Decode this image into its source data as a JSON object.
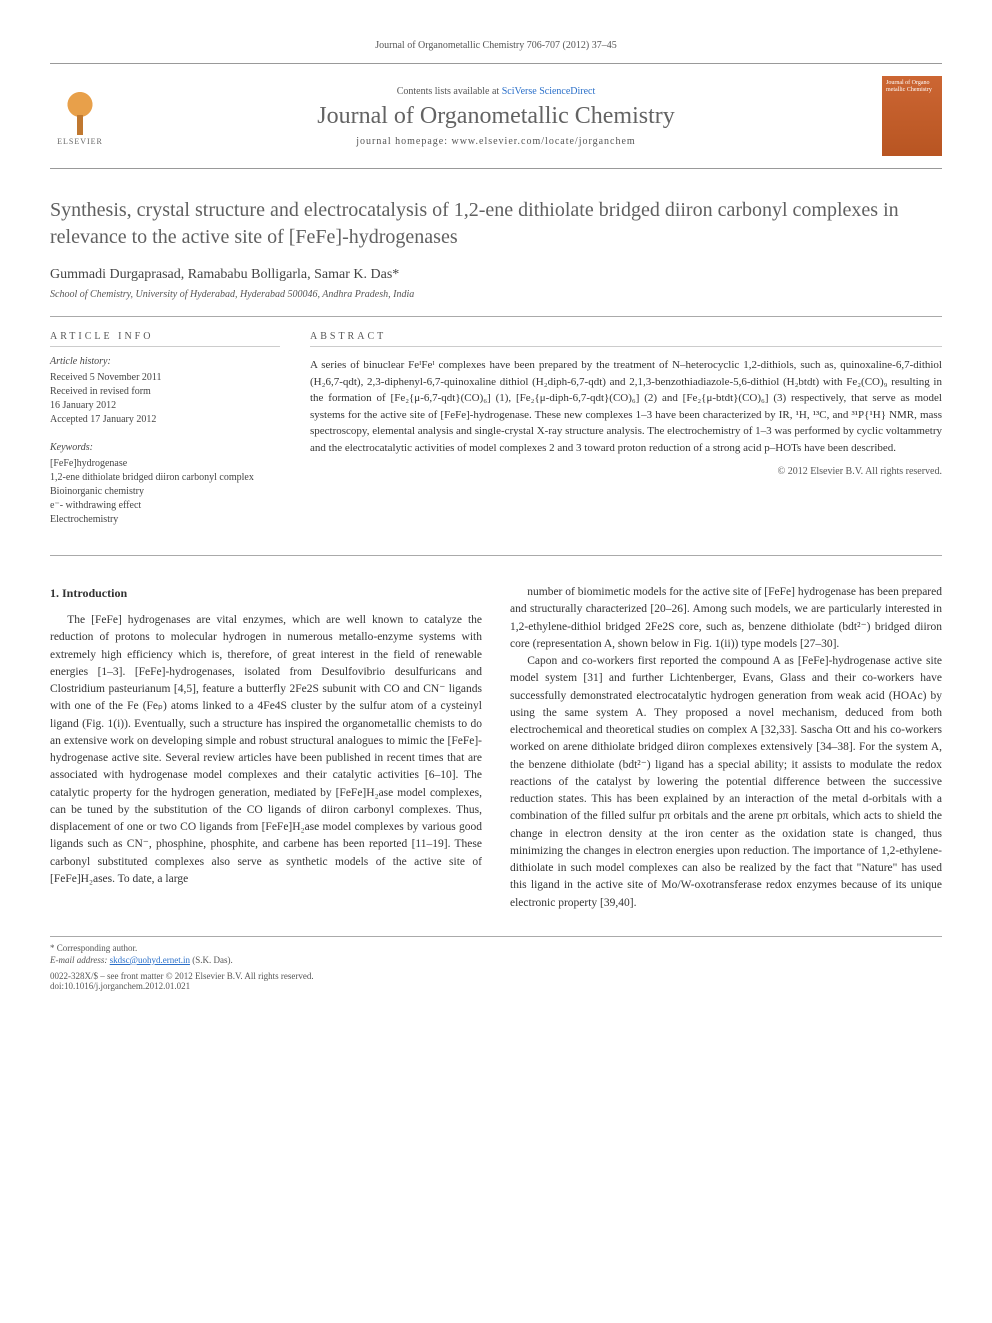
{
  "top_citation": "Journal of Organometallic Chemistry 706-707 (2012) 37–45",
  "header": {
    "contents_prefix": "Contents lists available at ",
    "contents_link": "SciVerse ScienceDirect",
    "journal_name": "Journal of Organometallic Chemistry",
    "homepage_prefix": "journal homepage: ",
    "homepage_url": "www.elsevier.com/locate/jorganchem",
    "elsevier_label": "ELSEVIER",
    "cover_text": "Journal of Organo metallic Chemistry"
  },
  "title": "Synthesis, crystal structure and electrocatalysis of 1,2-ene dithiolate bridged diiron carbonyl complexes in relevance to the active site of [FeFe]-hydrogenases",
  "authors": "Gummadi Durgaprasad, Ramababu Bolligarla, Samar K. Das*",
  "affiliation": "School of Chemistry, University of Hyderabad, Hyderabad 500046, Andhra Pradesh, India",
  "article_info": {
    "heading": "ARTICLE INFO",
    "history_label": "Article history:",
    "history": "Received 5 November 2011\nReceived in revised form\n16 January 2012\nAccepted 17 January 2012",
    "keywords_label": "Keywords:",
    "keywords": "[FeFe]hydrogenase\n1,2-ene dithiolate bridged diiron carbonyl complex\nBioinorganic chemistry\ne⁻- withdrawing effect\nElectrochemistry"
  },
  "abstract": {
    "heading": "ABSTRACT",
    "text": "A series of binuclear FeᴵFeᴵ complexes have been prepared by the treatment of N–heterocyclic 1,2-dithiols, such as, quinoxaline-6,7-dithiol (H₂6,7-qdt), 2,3-diphenyl-6,7-quinoxaline dithiol (H₂diph-6,7-qdt) and 2,1,3-benzothiadiazole-5,6-dithiol (H₂btdt) with Fe₂(CO)₉ resulting in the formation of [Fe₂{μ-6,7-qdt}(CO)₆] (1), [Fe₂{μ-diph-6,7-qdt}(CO)₆] (2) and [Fe₂{μ-btdt}(CO)₆] (3) respectively, that serve as model systems for the active site of [FeFe]-hydrogenase. These new complexes 1–3 have been characterized by IR, ¹H, ¹³C, and ³¹P{¹H} NMR, mass spectroscopy, elemental analysis and single-crystal X-ray structure analysis. The electrochemistry of 1–3 was performed by cyclic voltammetry and the electrocatalytic activities of model complexes 2 and 3 toward proton reduction of a strong acid p–HOTs have been described.",
    "copyright": "© 2012 Elsevier B.V. All rights reserved."
  },
  "body": {
    "section_heading": "1. Introduction",
    "col1_p1": "The [FeFe] hydrogenases are vital enzymes, which are well known to catalyze the reduction of protons to molecular hydrogen in numerous metallo-enzyme systems with extremely high efficiency which is, therefore, of great interest in the field of renewable energies [1–3]. [FeFe]-hydrogenases, isolated from Desulfovibrio desulfuricans and Clostridium pasteurianum [4,5], feature a butterfly 2Fe2S subunit with CO and CN⁻ ligands with one of the Fe (Feₚ) atoms linked to a 4Fe4S cluster by the sulfur atom of a cysteinyl ligand (Fig. 1(i)). Eventually, such a structure has inspired the organometallic chemists to do an extensive work on developing simple and robust structural analogues to mimic the [FeFe]-hydrogenase active site. Several review articles have been published in recent times that are associated with hydrogenase model complexes and their catalytic activities [6–10]. The catalytic property for the hydrogen generation, mediated by [FeFe]H₂ase model complexes, can be tuned by the substitution of the CO ligands of diiron carbonyl complexes. Thus, displacement of one or two CO ligands from [FeFe]H₂ase model complexes by various good ligands such as CN⁻, phosphine, phosphite, and carbene has been reported [11–19]. These carbonyl substituted complexes also serve as synthetic models of the active site of [FeFe]H₂ases. To date, a large",
    "col2_p1": "number of biomimetic models for the active site of [FeFe] hydrogenase has been prepared and structurally characterized [20–26]. Among such models, we are particularly interested in 1,2-ethylene-dithiol bridged 2Fe2S core, such as, benzene dithiolate (bdt²⁻) bridged diiron core (representation A, shown below in Fig. 1(ii)) type models [27–30].",
    "col2_p2": "Capon and co-workers first reported the compound A as [FeFe]-hydrogenase active site model system [31] and further Lichtenberger, Evans, Glass and their co-workers have successfully demonstrated electrocatalytic hydrogen generation from weak acid (HOAc) by using the same system A. They proposed a novel mechanism, deduced from both electrochemical and theoretical studies on complex A [32,33]. Sascha Ott and his co-workers worked on arene dithiolate bridged diiron complexes extensively [34–38]. For the system A, the benzene dithiolate (bdt²⁻) ligand has a special ability; it assists to modulate the redox reactions of the catalyst by lowering the potential difference between the successive reduction states. This has been explained by an interaction of the metal d-orbitals with a combination of the filled sulfur pπ orbitals and the arene pπ orbitals, which acts to shield the change in electron density at the iron center as the oxidation state is changed, thus minimizing the changes in electron energies upon reduction. The importance of 1,2-ethylene-dithiolate in such model complexes can also be realized by the fact that \"Nature\" has used this ligand in the active site of Mo/W-oxotransferase redox enzymes because of its unique electronic property [39,40]."
  },
  "footer": {
    "corr_label": "* Corresponding author.",
    "email_label": "E-mail address: ",
    "email": "skdsc@uohyd.ernet.in",
    "email_suffix": " (S.K. Das).",
    "issn_line": "0022-328X/$ – see front matter © 2012 Elsevier B.V. All rights reserved.",
    "doi_line": "doi:10.1016/j.jorganchem.2012.01.021"
  },
  "colors": {
    "link": "#2a6fc9",
    "text": "#333333",
    "heading_gray": "#606060",
    "rule": "#aaaaaa",
    "cover_bg": "#cc6633"
  }
}
